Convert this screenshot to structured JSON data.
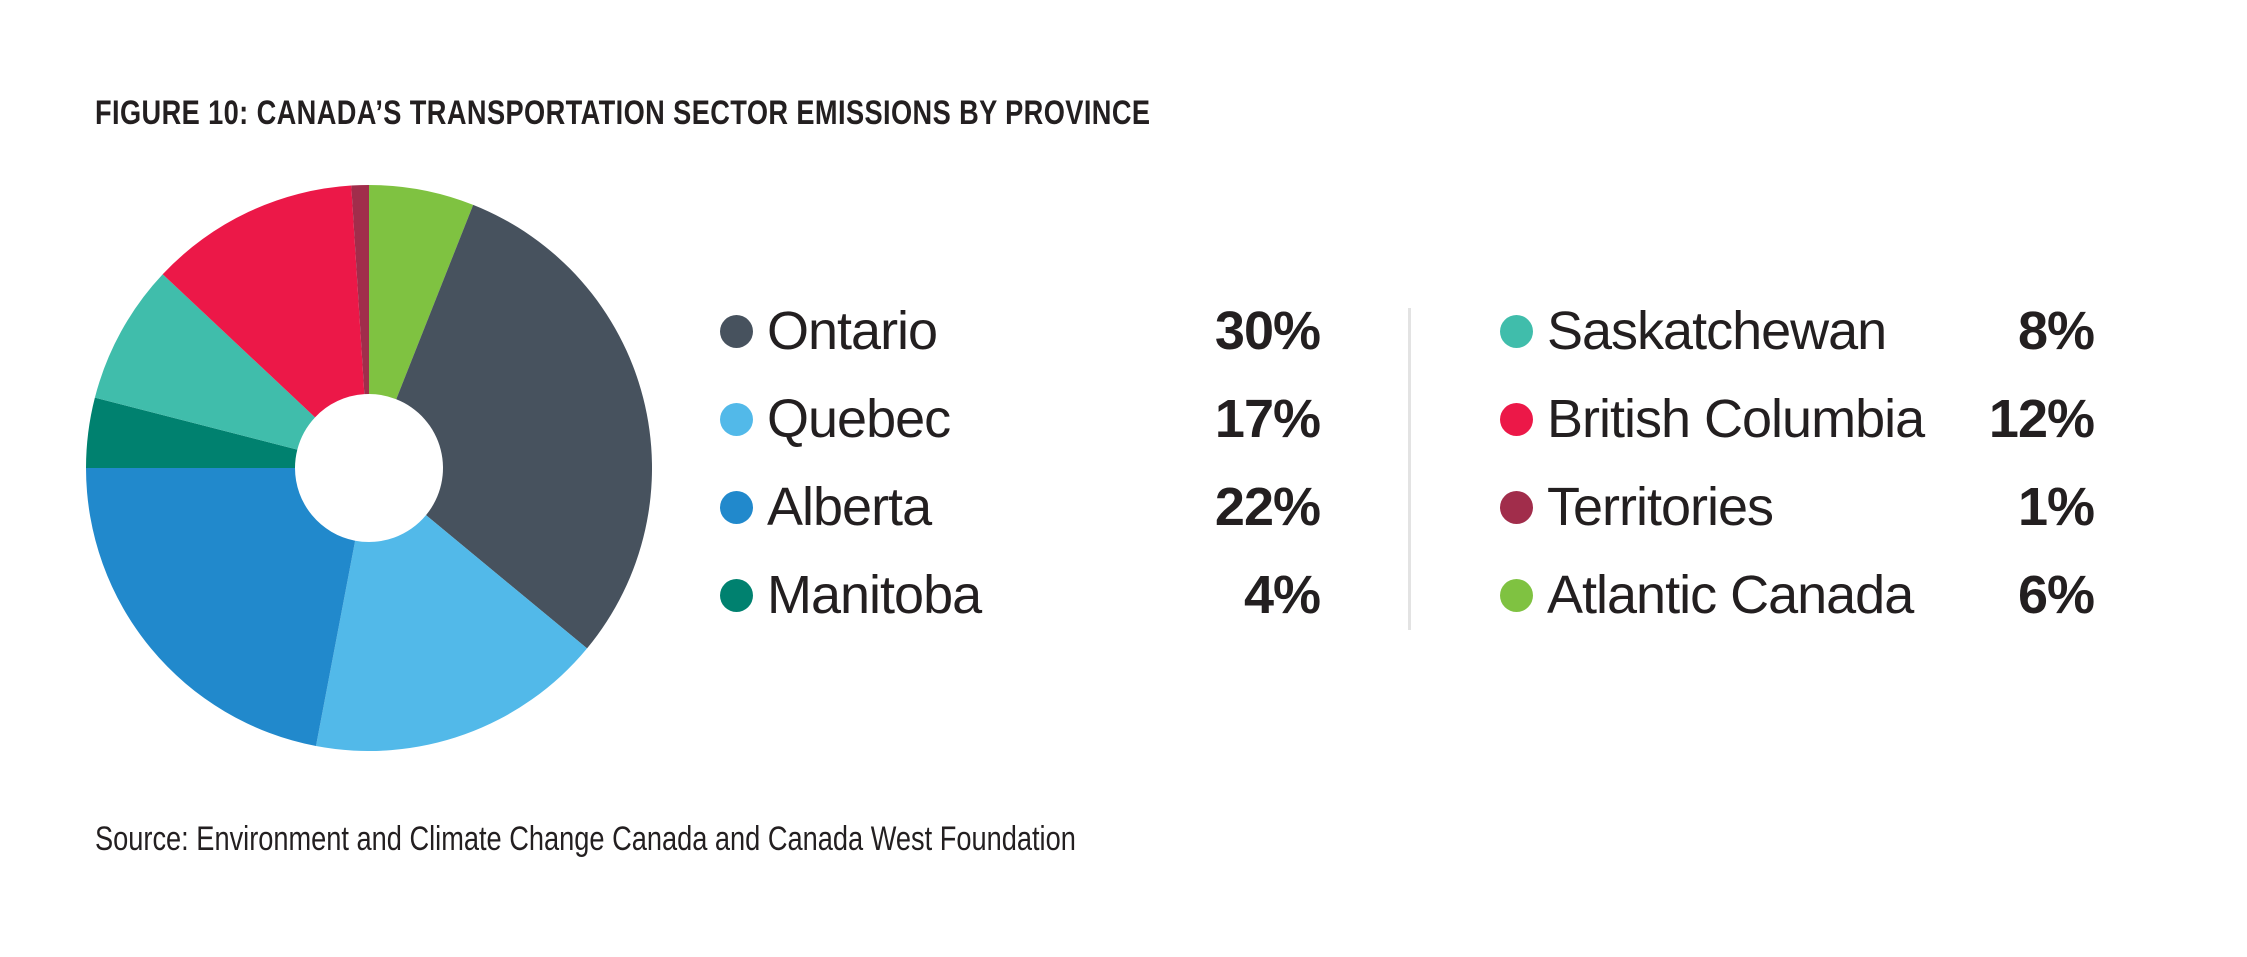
{
  "figure": {
    "title": "FIGURE 10: CANADA’S TRANSPORTATION SECTOR EMISSIONS BY PROVINCE",
    "source": "Source: Environment and Climate Change Canada and Canada West Foundation"
  },
  "chart_data": {
    "type": "pie",
    "subtype": "donut",
    "title": "FIGURE 10: CANADA’S TRANSPORTATION SECTOR EMISSIONS BY PROVINCE",
    "direction": "clockwise",
    "start_angle_deg": 0,
    "slices": [
      {
        "label": "Atlantic Canada",
        "value": 6,
        "display": "6%",
        "color": "#7FC241"
      },
      {
        "label": "Ontario",
        "value": 30,
        "display": "30%",
        "color": "#47525E"
      },
      {
        "label": "Quebec",
        "value": 17,
        "display": "17%",
        "color": "#52B9E9"
      },
      {
        "label": "Alberta",
        "value": 22,
        "display": "22%",
        "color": "#2189CC"
      },
      {
        "label": "Manitoba",
        "value": 4,
        "display": "4%",
        "color": "#00816F"
      },
      {
        "label": "Saskatchewan",
        "value": 8,
        "display": "8%",
        "color": "#40BDAB"
      },
      {
        "label": "British Columbia",
        "value": 12,
        "display": "12%",
        "color": "#EC1848"
      },
      {
        "label": "Territories",
        "value": 1,
        "display": "1%",
        "color": "#A12D4B"
      }
    ],
    "legend": {
      "position": "right",
      "columns": [
        [
          "Ontario",
          "Quebec",
          "Alberta",
          "Manitoba"
        ],
        [
          "Saskatchewan",
          "British Columbia",
          "Territories",
          "Atlantic Canada"
        ]
      ]
    }
  }
}
